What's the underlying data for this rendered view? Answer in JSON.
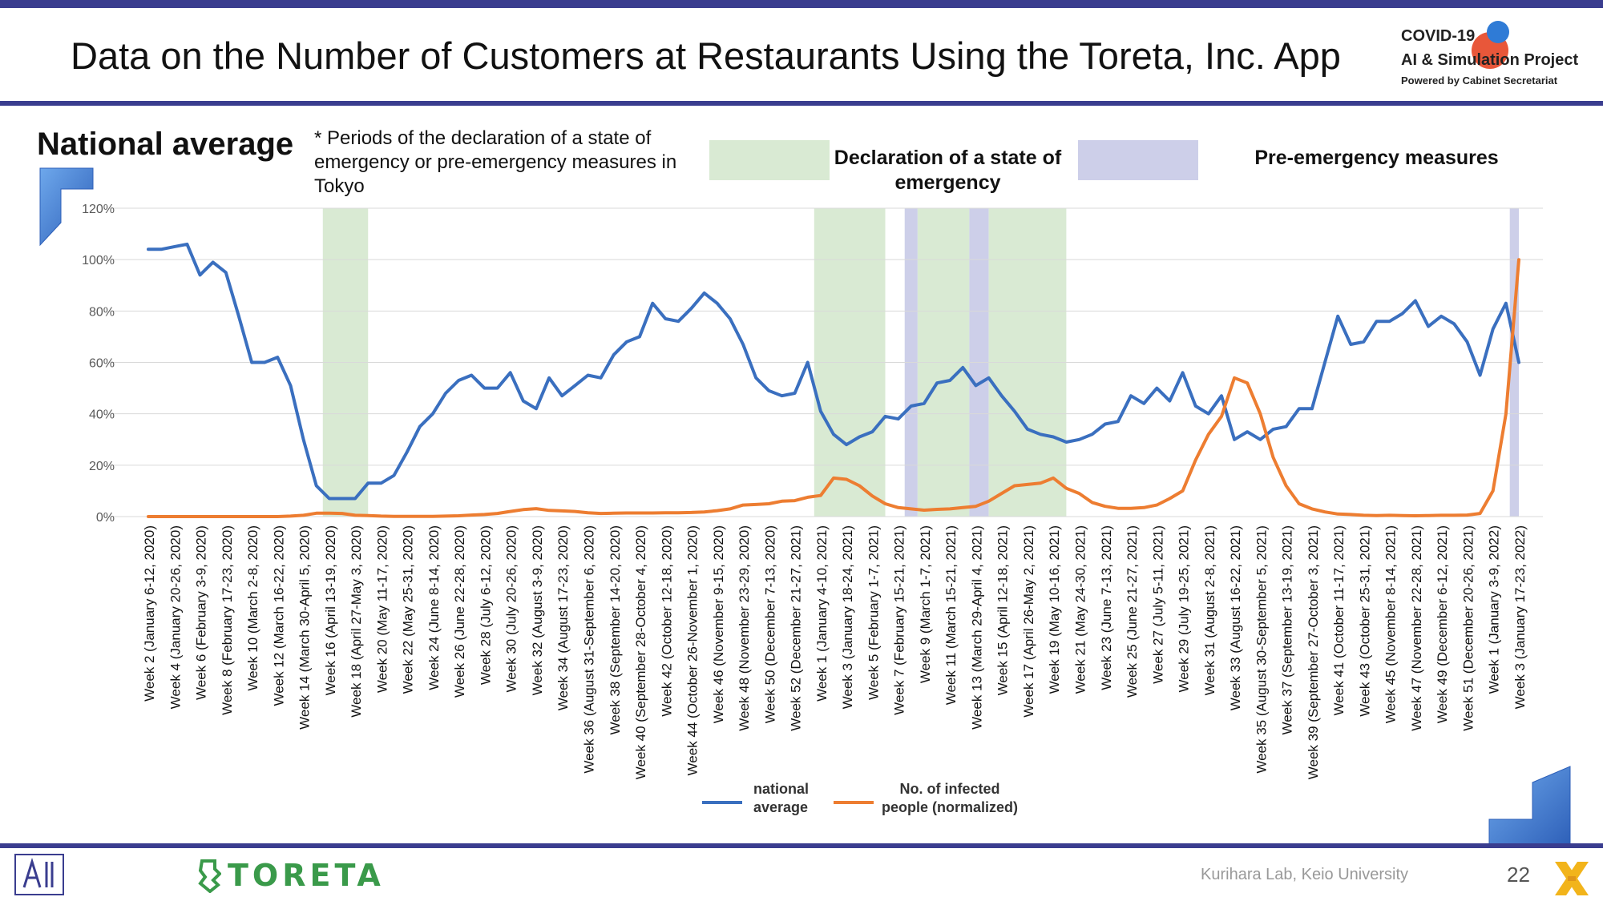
{
  "slide": {
    "title": "Data on the Number of Customers at Restaurants Using the Toreta, Inc. App",
    "project_line1": "COVID-19",
    "project_line2": "AI & Simulation Project",
    "project_line3": "Powered by Cabinet Secretariat",
    "heading": "National average",
    "note": "* Periods of the declaration of a state of emergency or pre-emergency measures in Tokyo",
    "legend_emergency": "Declaration of a state of emergency",
    "legend_pre": "Pre-emergency measures",
    "footer_lab": "Kurihara Lab, Keio University",
    "page_number": "22",
    "brand": "TORETA",
    "colors": {
      "emergency": "#d9ead3",
      "pre_emergency": "#cdcfe9",
      "national": "#3a6fbf",
      "infected": "#ed7d31",
      "bar": "#3a3d8f"
    }
  },
  "chart_data": {
    "type": "line",
    "title": "",
    "xlabel": "",
    "ylabel": "",
    "ylim": [
      0,
      1.2
    ],
    "yticks": [
      "0%",
      "20%",
      "40%",
      "60%",
      "80%",
      "100%",
      "120%"
    ],
    "grid": true,
    "legend_position": "bottom",
    "x_tick_labels": [
      "Week 2 (January 6-12, 2020)",
      "Week 4 (January 20-26, 2020)",
      "Week 6 (February 3-9, 2020)",
      "Week 8 (February 17-23, 2020)",
      "Week 10 (March 2-8, 2020)",
      "Week 12 (March 16-22, 2020)",
      "Week 14 (March 30-April 5, 2020)",
      "Week 16 (April 13-19, 2020)",
      "Week 18 (April 27-May 3, 2020)",
      "Week 20 (May 11-17, 2020)",
      "Week 22 (May 25-31, 2020)",
      "Week 24 (June 8-14, 2020)",
      "Week 26 (June 22-28, 2020)",
      "Week 28 (July 6-12, 2020)",
      "Week 30 (July 20-26, 2020)",
      "Week 32 (August 3-9, 2020)",
      "Week 34 (August 17-23, 2020)",
      "Week 36 (August 31-September 6, 2020)",
      "Week 38 (September 14-20, 2020)",
      "Week 40 (September 28-October 4, 2020)",
      "Week 42 (October 12-18, 2020)",
      "Week 44 (October 26-November 1, 2020)",
      "Week 46 (November 9-15, 2020)",
      "Week 48 (November 23-29, 2020)",
      "Week 50 (December 7-13, 2020)",
      "Week 52 (December 21-27, 2021)",
      "Week 1 (January 4-10, 2021)",
      "Week 3 (January 18-24, 2021)",
      "Week 5 (February 1-7, 2021)",
      "Week 7 (February 15-21, 2021)",
      "Week 9 (March 1-7, 2021)",
      "Week 11 (March 15-21, 2021)",
      "Week 13 (March 29-April 4, 2021)",
      "Week 15 (April 12-18, 2021)",
      "Week 17 (April 26-May 2, 2021)",
      "Week 19 (May 10-16, 2021)",
      "Week 21 (May 24-30, 2021)",
      "Week 23 (June 7-13, 2021)",
      "Week 25 (June 21-27, 2021)",
      "Week 27 (July 5-11, 2021)",
      "Week 29 (July 19-25, 2021)",
      "Week 31 (August 2-8, 2021)",
      "Week 33 (August 16-22, 2021)",
      "Week 35 (August 30-September 5, 2021)",
      "Week 37 (September 13-19, 2021)",
      "Week 39 (September 27-October 3, 2021)",
      "Week 41 (October 11-17, 2021)",
      "Week 43 (October 25-31, 2021)",
      "Week 45 (November 8-14, 2021)",
      "Week 47 (November 22-28, 2021)",
      "Week 49 (December 6-12, 2021)",
      "Week 51 (December 20-26, 2021)",
      "Week 1 (January 3-9, 2022)",
      "Week 3 (January 17-23, 2022)"
    ],
    "shaded_periods": [
      {
        "kind": "emergency",
        "start": 13.5,
        "end": 17
      },
      {
        "kind": "emergency",
        "start": 51.5,
        "end": 57
      },
      {
        "kind": "pre",
        "start": 58.5,
        "end": 59.5
      },
      {
        "kind": "emergency",
        "start": 59.5,
        "end": 63.5
      },
      {
        "kind": "pre",
        "start": 63.5,
        "end": 65
      },
      {
        "kind": "emergency",
        "start": 65,
        "end": 71
      },
      {
        "kind": "pre",
        "start": 105.3,
        "end": 106
      }
    ],
    "series": [
      {
        "name": "national average",
        "values": [
          1.04,
          1.04,
          1.05,
          1.06,
          0.94,
          0.99,
          0.95,
          0.78,
          0.6,
          0.6,
          0.62,
          0.51,
          0.3,
          0.12,
          0.07,
          0.07,
          0.07,
          0.13,
          0.13,
          0.16,
          0.25,
          0.35,
          0.4,
          0.48,
          0.53,
          0.55,
          0.5,
          0.5,
          0.56,
          0.45,
          0.42,
          0.54,
          0.47,
          0.51,
          0.55,
          0.54,
          0.63,
          0.68,
          0.7,
          0.83,
          0.77,
          0.76,
          0.81,
          0.87,
          0.83,
          0.77,
          0.67,
          0.54,
          0.49,
          0.47,
          0.48,
          0.6,
          0.41,
          0.32,
          0.28,
          0.31,
          0.33,
          0.39,
          0.38,
          0.43,
          0.44,
          0.52,
          0.53,
          0.58,
          0.51,
          0.54,
          0.47,
          0.41,
          0.34,
          0.32,
          0.31,
          0.29,
          0.3,
          0.32,
          0.36,
          0.37,
          0.47,
          0.44,
          0.5,
          0.45,
          0.56,
          0.43,
          0.4,
          0.47,
          0.3,
          0.33,
          0.3,
          0.34,
          0.35,
          0.42,
          0.42,
          0.6,
          0.78,
          0.67,
          0.68,
          0.76,
          0.76,
          0.79,
          0.84,
          0.74,
          0.78,
          0.75,
          0.68,
          0.55,
          0.73,
          0.83,
          0.6
        ]
      },
      {
        "name": "No. of infected people (normalized)",
        "values": [
          0.0,
          0.0,
          0.0,
          0.0,
          0.0,
          0.0,
          0.0,
          0.0,
          0.0,
          0.0,
          0.0,
          0.002,
          0.005,
          0.013,
          0.013,
          0.012,
          0.005,
          0.004,
          0.002,
          0.001,
          0.001,
          0.001,
          0.001,
          0.002,
          0.003,
          0.006,
          0.008,
          0.012,
          0.02,
          0.027,
          0.031,
          0.024,
          0.022,
          0.02,
          0.015,
          0.012,
          0.013,
          0.014,
          0.014,
          0.014,
          0.015,
          0.015,
          0.016,
          0.018,
          0.023,
          0.03,
          0.045,
          0.047,
          0.05,
          0.06,
          0.062,
          0.075,
          0.082,
          0.15,
          0.145,
          0.12,
          0.08,
          0.05,
          0.035,
          0.03,
          0.025,
          0.028,
          0.03,
          0.035,
          0.04,
          0.06,
          0.09,
          0.12,
          0.125,
          0.13,
          0.15,
          0.11,
          0.09,
          0.055,
          0.04,
          0.032,
          0.032,
          0.035,
          0.045,
          0.07,
          0.1,
          0.22,
          0.32,
          0.39,
          0.54,
          0.52,
          0.4,
          0.23,
          0.12,
          0.05,
          0.03,
          0.018,
          0.01,
          0.008,
          0.005,
          0.004,
          0.005,
          0.004,
          0.003,
          0.004,
          0.005,
          0.005,
          0.006,
          0.012,
          0.1,
          0.4,
          1.0
        ]
      }
    ]
  }
}
